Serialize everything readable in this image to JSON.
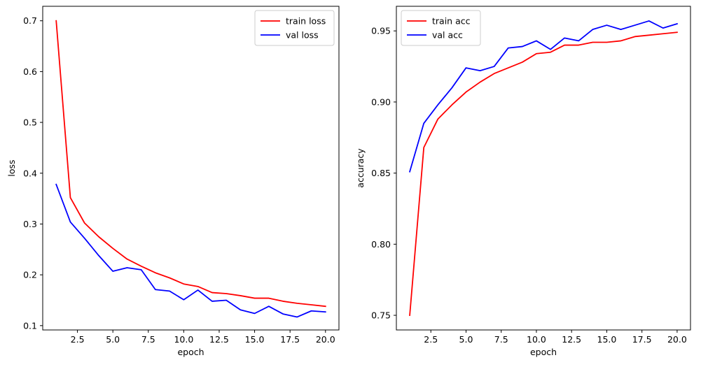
{
  "chart_data": [
    {
      "type": "line",
      "title": "",
      "xlabel": "epoch",
      "ylabel": "loss",
      "xlim": [
        0.05,
        20.95
      ],
      "ylim": [
        0.0915,
        0.7285
      ],
      "xticks": [
        2.5,
        5.0,
        7.5,
        10.0,
        12.5,
        15.0,
        17.5,
        20.0
      ],
      "xtick_labels": [
        "2.5",
        "5.0",
        "7.5",
        "10.0",
        "12.5",
        "15.0",
        "17.5",
        "20.0"
      ],
      "yticks": [
        0.1,
        0.2,
        0.3,
        0.4,
        0.5,
        0.6,
        0.7
      ],
      "ytick_labels": [
        "0.1",
        "0.2",
        "0.3",
        "0.4",
        "0.5",
        "0.6",
        "0.7"
      ],
      "grid": false,
      "legend_position": "top-right",
      "x": [
        1,
        2,
        3,
        4,
        5,
        6,
        7,
        8,
        9,
        10,
        11,
        12,
        13,
        14,
        15,
        16,
        17,
        18,
        19,
        20
      ],
      "series": [
        {
          "name": "train loss",
          "color": "#ff0000",
          "values": [
            0.7,
            0.352,
            0.302,
            0.275,
            0.252,
            0.231,
            0.217,
            0.204,
            0.194,
            0.182,
            0.177,
            0.165,
            0.163,
            0.159,
            0.154,
            0.154,
            0.148,
            0.144,
            0.141,
            0.138
          ]
        },
        {
          "name": "val loss",
          "color": "#0000ff",
          "values": [
            0.378,
            0.304,
            0.272,
            0.238,
            0.207,
            0.214,
            0.21,
            0.171,
            0.168,
            0.151,
            0.17,
            0.148,
            0.15,
            0.131,
            0.124,
            0.138,
            0.123,
            0.117,
            0.129,
            0.127
          ]
        }
      ]
    },
    {
      "type": "line",
      "title": "",
      "xlabel": "epoch",
      "ylabel": "accuracy",
      "xlim": [
        0.05,
        20.95
      ],
      "ylim": [
        0.7397,
        0.9673
      ],
      "xticks": [
        2.5,
        5.0,
        7.5,
        10.0,
        12.5,
        15.0,
        17.5,
        20.0
      ],
      "xtick_labels": [
        "2.5",
        "5.0",
        "7.5",
        "10.0",
        "12.5",
        "15.0",
        "17.5",
        "20.0"
      ],
      "yticks": [
        0.75,
        0.8,
        0.85,
        0.9,
        0.95
      ],
      "ytick_labels": [
        "0.75",
        "0.80",
        "0.85",
        "0.90",
        "0.95"
      ],
      "grid": false,
      "legend_position": "top-left",
      "x": [
        1,
        2,
        3,
        4,
        5,
        6,
        7,
        8,
        9,
        10,
        11,
        12,
        13,
        14,
        15,
        16,
        17,
        18,
        19,
        20
      ],
      "series": [
        {
          "name": "train acc",
          "color": "#ff0000",
          "values": [
            0.75,
            0.868,
            0.888,
            0.898,
            0.907,
            0.914,
            0.92,
            0.924,
            0.928,
            0.934,
            0.935,
            0.94,
            0.94,
            0.942,
            0.942,
            0.943,
            0.946,
            0.947,
            0.948,
            0.949
          ]
        },
        {
          "name": "val acc",
          "color": "#0000ff",
          "values": [
            0.851,
            0.885,
            0.898,
            0.91,
            0.924,
            0.922,
            0.925,
            0.938,
            0.939,
            0.943,
            0.937,
            0.945,
            0.943,
            0.951,
            0.954,
            0.951,
            0.954,
            0.957,
            0.952,
            0.955
          ]
        }
      ]
    }
  ]
}
